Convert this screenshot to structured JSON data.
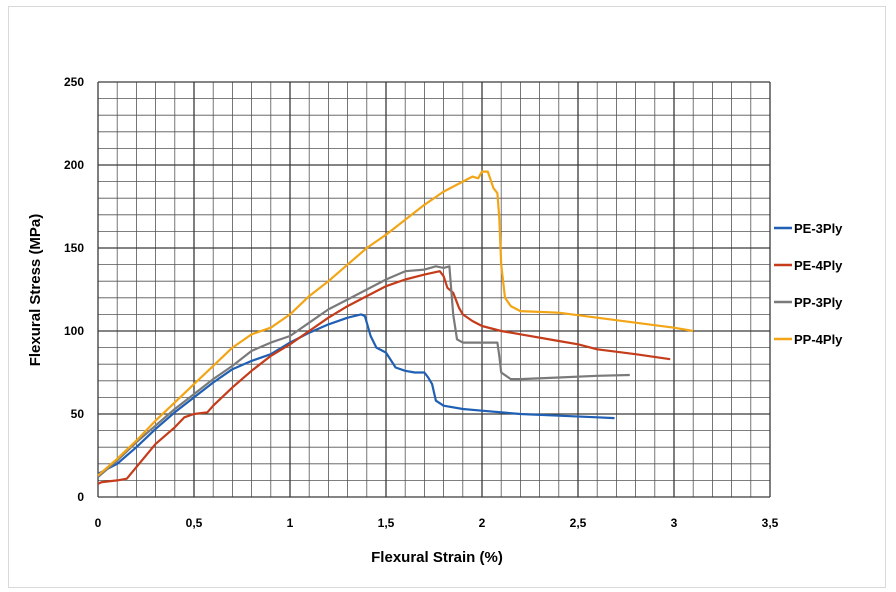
{
  "chart_data": {
    "type": "line",
    "title": "",
    "xlabel": "Flexural Strain (%)",
    "ylabel": "Flexural Stress (MPa)",
    "xlim": [
      0,
      3.5
    ],
    "ylim": [
      0,
      250
    ],
    "x_ticks": [
      "0",
      "0,5",
      "1",
      "1,5",
      "2",
      "2,5",
      "3",
      "3,5"
    ],
    "y_ticks": [
      "0",
      "50",
      "100",
      "150",
      "200",
      "250"
    ],
    "grid": true,
    "legend_position": "right",
    "series": [
      {
        "name": "PE-3Ply",
        "color": "#1f5fb4",
        "points": [
          [
            0,
            14
          ],
          [
            0.05,
            17
          ],
          [
            0.1,
            20
          ],
          [
            0.2,
            30
          ],
          [
            0.3,
            41
          ],
          [
            0.4,
            51
          ],
          [
            0.5,
            60
          ],
          [
            0.6,
            69
          ],
          [
            0.7,
            77
          ],
          [
            0.8,
            82
          ],
          [
            0.9,
            86
          ],
          [
            1.0,
            93
          ],
          [
            1.1,
            99
          ],
          [
            1.2,
            104
          ],
          [
            1.3,
            108
          ],
          [
            1.37,
            110
          ],
          [
            1.39,
            109
          ],
          [
            1.42,
            97
          ],
          [
            1.45,
            90
          ],
          [
            1.5,
            87
          ],
          [
            1.55,
            78
          ],
          [
            1.6,
            76
          ],
          [
            1.65,
            75
          ],
          [
            1.7,
            75
          ],
          [
            1.72,
            72
          ],
          [
            1.74,
            68
          ],
          [
            1.76,
            58
          ],
          [
            1.8,
            55
          ],
          [
            1.9,
            53
          ],
          [
            2.0,
            52
          ],
          [
            2.2,
            50
          ],
          [
            2.4,
            49
          ],
          [
            2.6,
            48
          ],
          [
            2.69,
            47.5
          ]
        ]
      },
      {
        "name": "PE-4Ply",
        "color": "#c43c1a",
        "points": [
          [
            0,
            8
          ],
          [
            0.02,
            9
          ],
          [
            0.1,
            10
          ],
          [
            0.15,
            11
          ],
          [
            0.2,
            18
          ],
          [
            0.3,
            32
          ],
          [
            0.4,
            42
          ],
          [
            0.45,
            48
          ],
          [
            0.5,
            50
          ],
          [
            0.57,
            51
          ],
          [
            0.6,
            55
          ],
          [
            0.7,
            66
          ],
          [
            0.8,
            76
          ],
          [
            0.9,
            85
          ],
          [
            1.0,
            92
          ],
          [
            1.1,
            100
          ],
          [
            1.2,
            108
          ],
          [
            1.3,
            115
          ],
          [
            1.4,
            121
          ],
          [
            1.5,
            127
          ],
          [
            1.6,
            131
          ],
          [
            1.7,
            134
          ],
          [
            1.78,
            136
          ],
          [
            1.8,
            133
          ],
          [
            1.82,
            126
          ],
          [
            1.85,
            123
          ],
          [
            1.88,
            114
          ],
          [
            1.9,
            110
          ],
          [
            1.95,
            106
          ],
          [
            2.0,
            103
          ],
          [
            2.1,
            100
          ],
          [
            2.2,
            98
          ],
          [
            2.4,
            94
          ],
          [
            2.5,
            92
          ],
          [
            2.6,
            89
          ],
          [
            2.8,
            86
          ],
          [
            2.98,
            83
          ]
        ]
      },
      {
        "name": "PP-3Ply",
        "color": "#7a7a7a",
        "points": [
          [
            0,
            12
          ],
          [
            0.1,
            22
          ],
          [
            0.2,
            33
          ],
          [
            0.3,
            43
          ],
          [
            0.4,
            53
          ],
          [
            0.5,
            62
          ],
          [
            0.6,
            71
          ],
          [
            0.7,
            79
          ],
          [
            0.8,
            88
          ],
          [
            0.9,
            93
          ],
          [
            1.0,
            97
          ],
          [
            1.1,
            105
          ],
          [
            1.2,
            113
          ],
          [
            1.3,
            119
          ],
          [
            1.4,
            125
          ],
          [
            1.5,
            131
          ],
          [
            1.6,
            136
          ],
          [
            1.7,
            137
          ],
          [
            1.76,
            139
          ],
          [
            1.8,
            138
          ],
          [
            1.83,
            139
          ],
          [
            1.85,
            110
          ],
          [
            1.87,
            95
          ],
          [
            1.9,
            93
          ],
          [
            2.0,
            93
          ],
          [
            2.08,
            93
          ],
          [
            2.09,
            85
          ],
          [
            2.1,
            75
          ],
          [
            2.15,
            71
          ],
          [
            2.2,
            71
          ],
          [
            2.4,
            72
          ],
          [
            2.6,
            73
          ],
          [
            2.77,
            73.5
          ]
        ]
      },
      {
        "name": "PP-4Ply",
        "color": "#f2a516",
        "points": [
          [
            0,
            13
          ],
          [
            0.1,
            23
          ],
          [
            0.2,
            34
          ],
          [
            0.3,
            46
          ],
          [
            0.4,
            57
          ],
          [
            0.5,
            68
          ],
          [
            0.6,
            79
          ],
          [
            0.7,
            90
          ],
          [
            0.75,
            94
          ],
          [
            0.8,
            98
          ],
          [
            0.9,
            102
          ],
          [
            1.0,
            110
          ],
          [
            1.1,
            121
          ],
          [
            1.2,
            130
          ],
          [
            1.3,
            140
          ],
          [
            1.4,
            150
          ],
          [
            1.5,
            158
          ],
          [
            1.6,
            167
          ],
          [
            1.7,
            176
          ],
          [
            1.8,
            184
          ],
          [
            1.9,
            190
          ],
          [
            1.95,
            193
          ],
          [
            1.98,
            192
          ],
          [
            2.0,
            196
          ],
          [
            2.03,
            196
          ],
          [
            2.06,
            186
          ],
          [
            2.08,
            183
          ],
          [
            2.09,
            168
          ],
          [
            2.1,
            140
          ],
          [
            2.12,
            120
          ],
          [
            2.15,
            115
          ],
          [
            2.2,
            112
          ],
          [
            2.4,
            111
          ],
          [
            2.6,
            108
          ],
          [
            2.8,
            105
          ],
          [
            3.0,
            102
          ],
          [
            3.1,
            100
          ]
        ]
      }
    ]
  }
}
